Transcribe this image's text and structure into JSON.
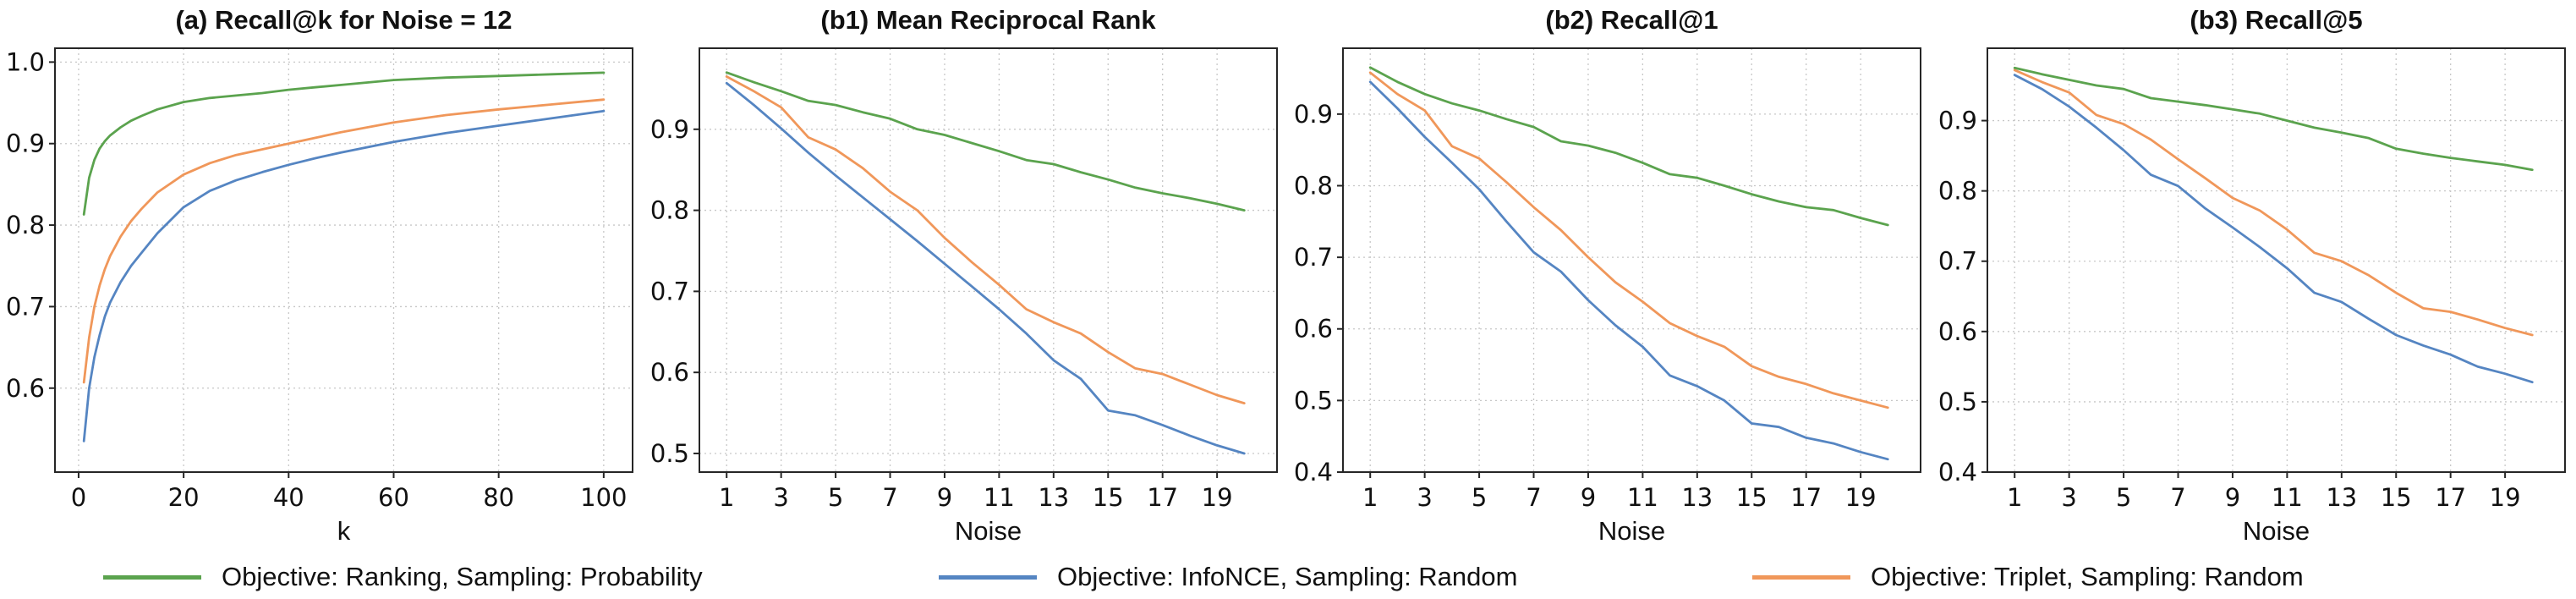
{
  "figure": {
    "background": "#ffffff",
    "legend": {
      "items": [
        {
          "label": "Objective: Ranking, Sampling: Probability",
          "color": "#5ba34e"
        },
        {
          "label": "Objective: InfoNCE, Sampling: Random",
          "color": "#5585c2"
        },
        {
          "label": "Objective: Triplet, Sampling: Random",
          "color": "#f0975a"
        }
      ]
    }
  },
  "chart_data": [
    {
      "type": "line",
      "title": "(a)  Recall@k  for  Noise = 12",
      "xlabel": "k",
      "grid": true,
      "legend_position": "below-figure",
      "xlim": [
        -4.5,
        105.5
      ],
      "ylim": [
        0.497,
        1.017
      ],
      "xticks": [
        0,
        20,
        40,
        60,
        80,
        100
      ],
      "yticks": [
        0.6,
        0.7,
        0.8,
        0.9,
        1.0
      ],
      "x": [
        1,
        2,
        3,
        4,
        5,
        6,
        8,
        10,
        12,
        15,
        20,
        25,
        30,
        35,
        40,
        45,
        50,
        60,
        70,
        80,
        90,
        100
      ],
      "series": [
        {
          "name": "Objective: InfoNCE, Sampling: Random",
          "color": "#5585c2",
          "values": [
            0.535,
            0.6,
            0.638,
            0.665,
            0.688,
            0.705,
            0.73,
            0.75,
            0.766,
            0.79,
            0.822,
            0.842,
            0.855,
            0.865,
            0.874,
            0.882,
            0.889,
            0.902,
            0.913,
            0.922,
            0.931,
            0.94
          ]
        },
        {
          "name": "Objective: Triplet, Sampling: Random",
          "color": "#f0975a",
          "values": [
            0.607,
            0.662,
            0.7,
            0.726,
            0.746,
            0.762,
            0.786,
            0.805,
            0.82,
            0.84,
            0.862,
            0.876,
            0.886,
            0.893,
            0.9,
            0.907,
            0.914,
            0.926,
            0.935,
            0.942,
            0.948,
            0.954
          ]
        },
        {
          "name": "Objective: Ranking, Sampling: Probability",
          "color": "#5ba34e",
          "values": [
            0.813,
            0.858,
            0.88,
            0.894,
            0.903,
            0.91,
            0.92,
            0.928,
            0.934,
            0.942,
            0.951,
            0.956,
            0.959,
            0.962,
            0.966,
            0.969,
            0.972,
            0.978,
            0.981,
            0.983,
            0.985,
            0.987
          ]
        }
      ]
    },
    {
      "type": "line",
      "title": "(b1)  Mean Reciprocal Rank",
      "xlabel": "Noise",
      "grid": true,
      "xlim": [
        0,
        21.2
      ],
      "ylim": [
        0.477,
        1.0
      ],
      "xticks": [
        1,
        3,
        5,
        7,
        9,
        11,
        13,
        15,
        17,
        19
      ],
      "yticks": [
        0.5,
        0.6,
        0.7,
        0.8,
        0.9
      ],
      "x": [
        1,
        2,
        3,
        4,
        5,
        6,
        7,
        8,
        9,
        10,
        11,
        12,
        13,
        14,
        15,
        16,
        17,
        18,
        19,
        20
      ],
      "series": [
        {
          "name": "Objective: InfoNCE, Sampling: Random",
          "color": "#5585c2",
          "values": [
            0.957,
            0.93,
            0.901,
            0.871,
            0.843,
            0.816,
            0.789,
            0.762,
            0.734,
            0.706,
            0.678,
            0.648,
            0.615,
            0.592,
            0.553,
            0.547,
            0.535,
            0.522,
            0.51,
            0.5
          ]
        },
        {
          "name": "Objective: Triplet, Sampling: Random",
          "color": "#f0975a",
          "values": [
            0.965,
            0.947,
            0.927,
            0.89,
            0.875,
            0.852,
            0.823,
            0.8,
            0.766,
            0.736,
            0.708,
            0.678,
            0.662,
            0.648,
            0.625,
            0.605,
            0.598,
            0.585,
            0.572,
            0.562
          ]
        },
        {
          "name": "Objective: Ranking, Sampling: Probability",
          "color": "#5ba34e",
          "values": [
            0.97,
            0.958,
            0.947,
            0.935,
            0.93,
            0.921,
            0.913,
            0.9,
            0.893,
            0.883,
            0.873,
            0.862,
            0.857,
            0.847,
            0.838,
            0.828,
            0.821,
            0.815,
            0.808,
            0.8
          ]
        }
      ]
    },
    {
      "type": "line",
      "title": "(b2)  Recall@1",
      "xlabel": "Noise",
      "grid": true,
      "xlim": [
        0,
        21.2
      ],
      "ylim": [
        0.4,
        0.992
      ],
      "xticks": [
        1,
        3,
        5,
        7,
        9,
        11,
        13,
        15,
        17,
        19
      ],
      "yticks": [
        0.4,
        0.5,
        0.6,
        0.7,
        0.8,
        0.9
      ],
      "x": [
        1,
        2,
        3,
        4,
        5,
        6,
        7,
        8,
        9,
        10,
        11,
        12,
        13,
        14,
        15,
        16,
        17,
        18,
        19,
        20
      ],
      "series": [
        {
          "name": "Objective: InfoNCE, Sampling: Random",
          "color": "#5585c2",
          "values": [
            0.945,
            0.908,
            0.868,
            0.832,
            0.795,
            0.75,
            0.707,
            0.68,
            0.64,
            0.605,
            0.575,
            0.535,
            0.52,
            0.5,
            0.468,
            0.463,
            0.448,
            0.44,
            0.428,
            0.418
          ]
        },
        {
          "name": "Objective: Triplet, Sampling: Random",
          "color": "#f0975a",
          "values": [
            0.958,
            0.928,
            0.905,
            0.855,
            0.838,
            0.805,
            0.77,
            0.738,
            0.7,
            0.665,
            0.638,
            0.608,
            0.59,
            0.575,
            0.548,
            0.533,
            0.523,
            0.51,
            0.5,
            0.49
          ]
        },
        {
          "name": "Objective: Ranking, Sampling: Probability",
          "color": "#5ba34e",
          "values": [
            0.965,
            0.945,
            0.928,
            0.915,
            0.905,
            0.893,
            0.882,
            0.862,
            0.856,
            0.846,
            0.832,
            0.816,
            0.811,
            0.8,
            0.788,
            0.778,
            0.77,
            0.766,
            0.755,
            0.745
          ]
        }
      ]
    },
    {
      "type": "line",
      "title": "(b3)  Recall@5",
      "xlabel": "Noise",
      "grid": true,
      "xlim": [
        0,
        21.2
      ],
      "ylim": [
        0.4,
        1.003
      ],
      "xticks": [
        1,
        3,
        5,
        7,
        9,
        11,
        13,
        15,
        17,
        19
      ],
      "yticks": [
        0.4,
        0.5,
        0.6,
        0.7,
        0.8,
        0.9
      ],
      "x": [
        1,
        2,
        3,
        4,
        5,
        6,
        7,
        8,
        9,
        10,
        11,
        12,
        13,
        14,
        15,
        16,
        17,
        18,
        19,
        20
      ],
      "series": [
        {
          "name": "Objective: InfoNCE, Sampling: Random",
          "color": "#5585c2",
          "values": [
            0.965,
            0.945,
            0.92,
            0.89,
            0.858,
            0.823,
            0.807,
            0.775,
            0.748,
            0.72,
            0.69,
            0.655,
            0.642,
            0.618,
            0.595,
            0.58,
            0.567,
            0.55,
            0.54,
            0.528
          ]
        },
        {
          "name": "Objective: Triplet, Sampling: Random",
          "color": "#f0975a",
          "values": [
            0.972,
            0.955,
            0.94,
            0.908,
            0.895,
            0.873,
            0.845,
            0.818,
            0.79,
            0.772,
            0.745,
            0.712,
            0.7,
            0.68,
            0.655,
            0.633,
            0.628,
            0.617,
            0.605,
            0.595
          ]
        },
        {
          "name": "Objective: Ranking, Sampling: Probability",
          "color": "#5ba34e",
          "values": [
            0.975,
            0.966,
            0.958,
            0.95,
            0.945,
            0.932,
            0.927,
            0.922,
            0.916,
            0.91,
            0.9,
            0.89,
            0.883,
            0.875,
            0.86,
            0.853,
            0.847,
            0.842,
            0.837,
            0.83
          ]
        }
      ]
    }
  ]
}
